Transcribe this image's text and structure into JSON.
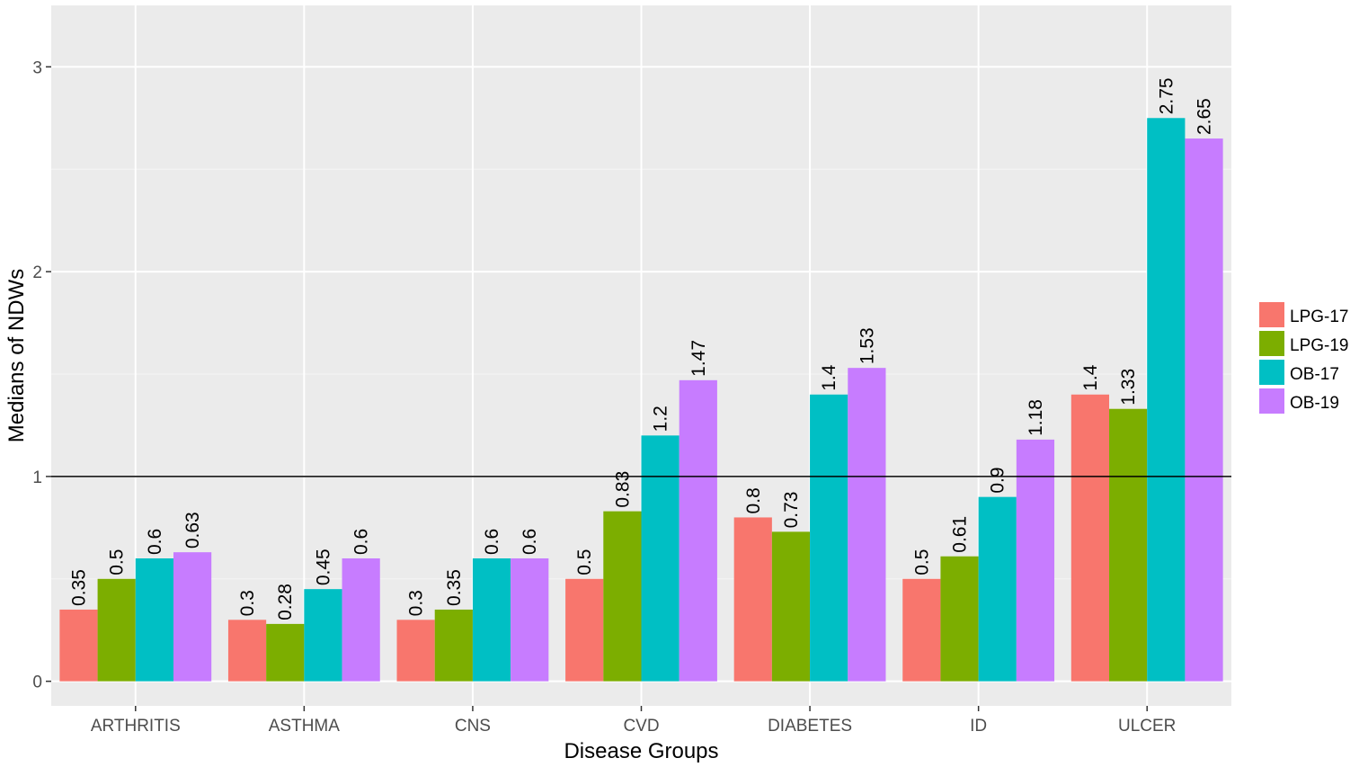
{
  "chart_data": {
    "type": "bar",
    "xlabel": "Disease Groups",
    "ylabel": "Medians of  NDWs",
    "ylim": [
      -0.12,
      3.3
    ],
    "yticks": [
      0,
      1,
      2,
      3
    ],
    "reference_line": 1,
    "grid": true,
    "legend_position": "right",
    "categories": [
      "ARTHRITIS",
      "ASTHMA",
      "CNS",
      "CVD",
      "DIABETES",
      "ID",
      "ULCER"
    ],
    "series": [
      {
        "name": "LPG-17",
        "color": "#F8766D",
        "values": [
          0.35,
          0.3,
          0.3,
          0.5,
          0.8,
          0.5,
          1.4
        ],
        "labels": [
          "0.35",
          "0.3",
          "0.3",
          "0.5",
          "0.8",
          "0.5",
          "1.4"
        ]
      },
      {
        "name": "LPG-19",
        "color": "#7CAE00",
        "values": [
          0.5,
          0.28,
          0.35,
          0.83,
          0.73,
          0.61,
          1.33
        ],
        "labels": [
          "0.5",
          "0.28",
          "0.35",
          "0.83",
          "0.73",
          "0.61",
          "1.33"
        ]
      },
      {
        "name": "OB-17",
        "color": "#00BFC4",
        "values": [
          0.6,
          0.45,
          0.6,
          1.2,
          1.4,
          0.9,
          2.75
        ],
        "labels": [
          "0.6",
          "0.45",
          "0.6",
          "1.2",
          "1.4",
          "0.9",
          "2.75"
        ]
      },
      {
        "name": "OB-19",
        "color": "#C77CFF",
        "values": [
          0.63,
          0.6,
          0.6,
          1.47,
          1.53,
          1.18,
          2.65
        ],
        "labels": [
          "0.63",
          "0.6",
          "0.6",
          "1.47",
          "1.53",
          "1.18",
          "2.65"
        ]
      }
    ]
  }
}
